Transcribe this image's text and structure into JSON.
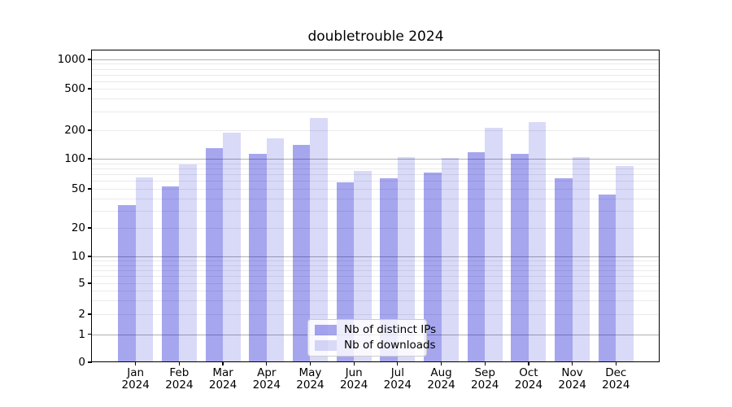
{
  "chart_data": {
    "type": "bar",
    "title": "doubletrouble 2024",
    "categories": [
      {
        "month": "Jan",
        "year": "2024"
      },
      {
        "month": "Feb",
        "year": "2024"
      },
      {
        "month": "Mar",
        "year": "2024"
      },
      {
        "month": "Apr",
        "year": "2024"
      },
      {
        "month": "May",
        "year": "2024"
      },
      {
        "month": "Jun",
        "year": "2024"
      },
      {
        "month": "Jul",
        "year": "2024"
      },
      {
        "month": "Aug",
        "year": "2024"
      },
      {
        "month": "Sep",
        "year": "2024"
      },
      {
        "month": "Oct",
        "year": "2024"
      },
      {
        "month": "Nov",
        "year": "2024"
      },
      {
        "month": "Dec",
        "year": "2024"
      }
    ],
    "series": [
      {
        "name": "Nb of distinct IPs",
        "color": "rgba(0,0,205,0.35)",
        "values": [
          34,
          53,
          130,
          113,
          140,
          58,
          64,
          73,
          117,
          113,
          64,
          44
        ]
      },
      {
        "name": "Nb of downloads",
        "color": "rgba(0,0,205,0.15)",
        "values": [
          65,
          88,
          190,
          165,
          260,
          76,
          104,
          102,
          210,
          240,
          104,
          85
        ]
      }
    ],
    "yticks": [
      0,
      1,
      2,
      5,
      10,
      20,
      50,
      100,
      200,
      500,
      1000
    ],
    "y_scale": "symlog",
    "ylim": [
      0,
      1240
    ],
    "grid": true,
    "legend_position": "lower center",
    "colors": {
      "major_grid": "#b0b0b0",
      "minor_grid": "#eaeaea",
      "spine": "#000000",
      "background": "#ffffff"
    }
  }
}
